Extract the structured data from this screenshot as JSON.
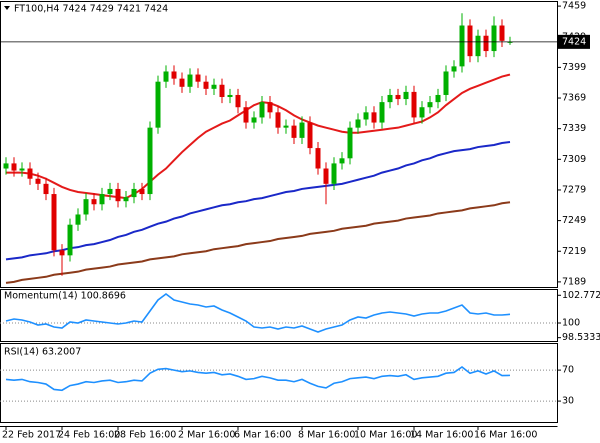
{
  "chart_data": [
    {
      "type": "candlestick",
      "title": "FT100,H4  7424 7429 7421 7424",
      "xlim": [
        -0.75,
        68.875
      ],
      "xticks": [
        {
          "value": 0,
          "label": "22 Feb 2017"
        },
        {
          "value": 7,
          "label": "24 Feb 16:00"
        },
        {
          "value": 14,
          "label": "28 Feb 16:00"
        },
        {
          "value": 22,
          "label": "2 Mar 16:00"
        },
        {
          "value": 29,
          "label": "6 Mar 16:00"
        },
        {
          "value": 37,
          "label": "8 Mar 16:00"
        },
        {
          "value": 44,
          "label": "10 Mar 16:00"
        },
        {
          "value": 51,
          "label": "14 Mar 16:00"
        },
        {
          "value": 59,
          "label": "16 Mar 16:00"
        }
      ],
      "ylim": [
        7184,
        7464
      ],
      "yticks": [
        7459,
        7429,
        7399,
        7369,
        7339,
        7309,
        7279,
        7249,
        7219,
        7189
      ],
      "up_color": "#00b000",
      "down_color": "#e00000",
      "open": [
        7300,
        7305,
        7298,
        7300,
        7290,
        7285,
        7275,
        7220,
        7215,
        7245,
        7255,
        7270,
        7265,
        7275,
        7280,
        7268,
        7272,
        7280,
        7275,
        7340,
        7385,
        7395,
        7388,
        7380,
        7392,
        7385,
        7378,
        7382,
        7370,
        7372,
        7360,
        7345,
        7350,
        7365,
        7355,
        7340,
        7342,
        7330,
        7345,
        7320,
        7300,
        7285,
        7305,
        7310,
        7340,
        7348,
        7355,
        7345,
        7365,
        7372,
        7368,
        7375,
        7350,
        7360,
        7365,
        7372,
        7395,
        7400,
        7440,
        7410,
        7430,
        7415,
        7440,
        7424
      ],
      "high": [
        7311,
        7311,
        7306,
        7306,
        7296,
        7291,
        7281,
        7226,
        7251,
        7261,
        7276,
        7276,
        7281,
        7286,
        7286,
        7278,
        7286,
        7286,
        7346,
        7391,
        7401,
        7401,
        7394,
        7398,
        7398,
        7391,
        7388,
        7388,
        7378,
        7378,
        7366,
        7356,
        7371,
        7371,
        7361,
        7348,
        7348,
        7351,
        7351,
        7326,
        7306,
        7311,
        7316,
        7346,
        7354,
        7361,
        7361,
        7371,
        7378,
        7378,
        7381,
        7381,
        7366,
        7371,
        7378,
        7401,
        7406,
        7452,
        7446,
        7436,
        7436,
        7449,
        7446,
        7429
      ],
      "low": [
        7294,
        7292,
        7292,
        7284,
        7279,
        7269,
        7214,
        7195,
        7209,
        7239,
        7249,
        7259,
        7259,
        7269,
        7262,
        7262,
        7266,
        7269,
        7269,
        7334,
        7379,
        7382,
        7374,
        7374,
        7379,
        7372,
        7372,
        7364,
        7364,
        7354,
        7339,
        7339,
        7344,
        7349,
        7334,
        7334,
        7324,
        7324,
        7314,
        7294,
        7265,
        7279,
        7299,
        7304,
        7334,
        7342,
        7339,
        7339,
        7359,
        7362,
        7362,
        7344,
        7344,
        7354,
        7359,
        7366,
        7389,
        7394,
        7404,
        7404,
        7409,
        7409,
        7419,
        7421
      ],
      "close": [
        7305,
        7298,
        7300,
        7290,
        7285,
        7275,
        7220,
        7215,
        7245,
        7255,
        7270,
        7265,
        7275,
        7280,
        7268,
        7272,
        7280,
        7275,
        7340,
        7385,
        7395,
        7388,
        7380,
        7392,
        7385,
        7378,
        7382,
        7370,
        7372,
        7360,
        7345,
        7350,
        7365,
        7355,
        7340,
        7342,
        7330,
        7345,
        7320,
        7300,
        7285,
        7305,
        7310,
        7340,
        7348,
        7355,
        7345,
        7365,
        7372,
        7368,
        7375,
        7350,
        7360,
        7365,
        7372,
        7395,
        7400,
        7440,
        7410,
        7430,
        7415,
        7440,
        7425,
        7424
      ],
      "series": [
        {
          "color": "#e41a1a",
          "values": [
            7296,
            7296,
            7296,
            7295,
            7293,
            7290,
            7286,
            7282,
            7279,
            7277,
            7276,
            7275,
            7274,
            7273,
            7272,
            7271,
            7275,
            7280,
            7287,
            7294,
            7300,
            7308,
            7316,
            7323,
            7330,
            7336,
            7340,
            7344,
            7347,
            7352,
            7357,
            7362,
            7365,
            7364,
            7361,
            7357,
            7352,
            7348,
            7345,
            7342,
            7340,
            7338,
            7336,
            7335,
            7335,
            7336,
            7337,
            7338,
            7339,
            7340,
            7342,
            7344,
            7346,
            7350,
            7355,
            7362,
            7368,
            7374,
            7378,
            7381,
            7384,
            7387,
            7390,
            7392
          ]
        },
        {
          "color": "#1a28c8",
          "values": [
            7211,
            7212,
            7213,
            7215,
            7216,
            7217,
            7219,
            7220,
            7222,
            7223,
            7225,
            7226,
            7228,
            7230,
            7233,
            7235,
            7238,
            7240,
            7243,
            7246,
            7248,
            7251,
            7253,
            7256,
            7258,
            7260,
            7262,
            7264,
            7265,
            7267,
            7268,
            7270,
            7271,
            7273,
            7275,
            7277,
            7278,
            7280,
            7281,
            7282,
            7283,
            7284,
            7285,
            7287,
            7289,
            7291,
            7293,
            7296,
            7298,
            7300,
            7303,
            7305,
            7308,
            7310,
            7313,
            7315,
            7317,
            7318,
            7319,
            7321,
            7322,
            7323,
            7325,
            7326
          ]
        },
        {
          "color": "#8b3a1a",
          "values": [
            7188,
            7189,
            7191,
            7192,
            7193,
            7194,
            7196,
            7197,
            7198,
            7199,
            7201,
            7202,
            7203,
            7204,
            7206,
            7207,
            7208,
            7209,
            7211,
            7212,
            7213,
            7214,
            7216,
            7217,
            7218,
            7219,
            7221,
            7222,
            7223,
            7224,
            7226,
            7227,
            7228,
            7229,
            7231,
            7232,
            7233,
            7234,
            7236,
            7237,
            7238,
            7239,
            7241,
            7242,
            7243,
            7244,
            7246,
            7247,
            7248,
            7249,
            7251,
            7252,
            7253,
            7254,
            7256,
            7257,
            7258,
            7259,
            7261,
            7262,
            7263,
            7264,
            7266,
            7267
          ]
        }
      ]
    },
    {
      "type": "line",
      "title": "Momentum(14) 100.8696",
      "color": "#1e90ff",
      "ylim": [
        98.2,
        103.4
      ],
      "yticks": [
        102.7721,
        100,
        98.5333
      ],
      "level": 100,
      "values": [
        100.2,
        100.4,
        100.3,
        100.1,
        99.8,
        99.9,
        99.6,
        99.5,
        100.1,
        100.0,
        100.3,
        100.2,
        100.1,
        100.0,
        99.9,
        100.0,
        100.2,
        100.1,
        101.2,
        102.3,
        102.9,
        102.3,
        102.1,
        101.9,
        101.8,
        101.6,
        101.7,
        101.3,
        101.0,
        100.6,
        100.2,
        99.6,
        99.5,
        99.6,
        99.4,
        99.6,
        99.5,
        99.7,
        99.4,
        99.1,
        99.4,
        99.6,
        99.8,
        100.3,
        100.6,
        100.5,
        100.8,
        101.0,
        101.1,
        101.0,
        100.9,
        100.7,
        100.9,
        101.0,
        101.0,
        101.2,
        101.5,
        101.8,
        101.0,
        100.9,
        101.0,
        100.8,
        100.8,
        100.8696
      ]
    },
    {
      "type": "line",
      "title": "RSI(14) 63.2007",
      "color": "#1e90ff",
      "ylim": [
        3,
        105
      ],
      "yticks": [
        70,
        30
      ],
      "grid": true,
      "values": [
        58,
        57,
        58,
        55,
        54,
        52,
        45,
        44,
        50,
        52,
        55,
        54,
        56,
        57,
        54,
        55,
        57,
        56,
        66,
        71,
        72,
        70,
        68,
        69,
        67,
        66,
        67,
        64,
        65,
        62,
        58,
        59,
        62,
        60,
        57,
        57,
        55,
        58,
        53,
        49,
        47,
        53,
        55,
        59,
        60,
        61,
        59,
        62,
        63,
        62,
        64,
        58,
        60,
        61,
        62,
        66,
        67,
        74,
        66,
        69,
        65,
        69,
        63,
        63.2007
      ]
    }
  ]
}
